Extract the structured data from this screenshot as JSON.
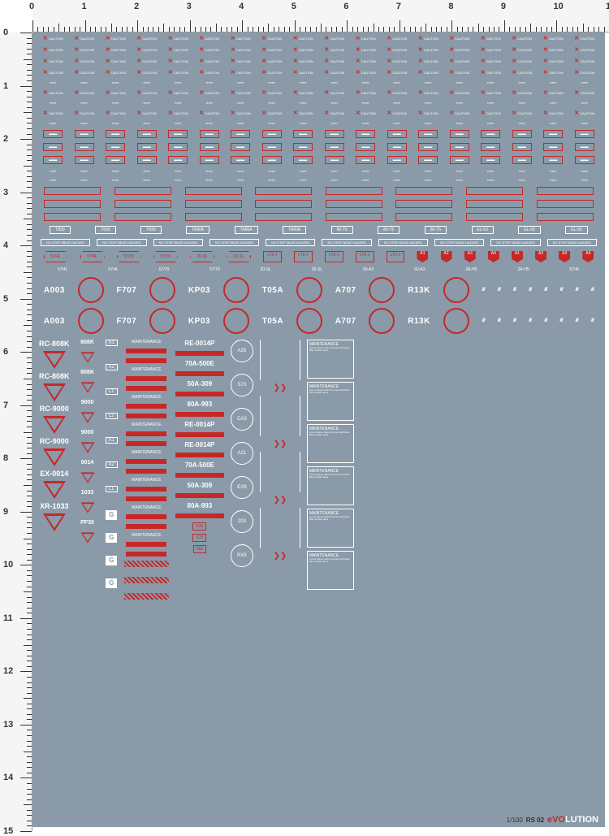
{
  "ruler": {
    "h_max": 11,
    "v_max": 15,
    "minor_per_major": 10
  },
  "sheet_bg": "#8a9aa8",
  "red": "#c62828",
  "white": "#ffffff",
  "top_rows": {
    "count": 14,
    "items_per_row": 18,
    "sample_text": "CAUTION"
  },
  "bracket_labels": [
    "T830",
    "T830",
    "T830",
    "TA90A",
    "TA90A",
    "TA90A",
    "80-T5",
    "80-T5",
    "80-T5",
    "EL-03",
    "EL-03",
    "EL-03"
  ],
  "hex_labels": [
    "57/4L",
    "57/4L",
    "57/70",
    "57/70",
    "20-SL",
    "20-SL",
    "50-A3",
    "50-A3",
    "2A-H5",
    "2A-H5",
    "57/4L"
  ],
  "rect_codes": [
    "LT9-1",
    "LT9-1",
    "LT9-1",
    "LT9-1",
    "LT9-1",
    "T71-1",
    "T71-1",
    "T71-1",
    "T71-1",
    "T71-1"
  ],
  "code_circles": {
    "row1": [
      "A003",
      "F707",
      "KP03",
      "T05A",
      "A707",
      "R13K"
    ],
    "row2": [
      "A003",
      "F707",
      "KP03",
      "T05A",
      "A707",
      "R13K"
    ]
  },
  "triangle_codes": [
    "RC-808K",
    "RC-808K",
    "RC-9000",
    "RC-9000",
    "EX-0014",
    "XR-1033"
  ],
  "small_codes": [
    "808K",
    "808K",
    "9000",
    "9000",
    "0014",
    "1033",
    "PF30"
  ],
  "mid_labels": [
    "A1",
    "A2",
    "L1",
    "L2",
    "A1",
    "A2",
    "L1"
  ],
  "re_codes": [
    "RE-0014P",
    "70A-500E",
    "50A-309",
    "80A-993",
    "RE-0014P",
    "RE-0014P",
    "70A-500E",
    "50A-309",
    "80A-993"
  ],
  "circle_labels": [
    "A35",
    "S73",
    "CA3",
    "A21",
    "EX9",
    "203",
    "RX5"
  ],
  "small_boxes": [
    "N25",
    "S75",
    "055"
  ],
  "maintenance_label": "MAINTENANCE",
  "caution_label": "CAUTION",
  "footer": {
    "scale": "1/100",
    "code": "RS 02",
    "brand_red": "eVO",
    "brand_white": "LUTION"
  },
  "shield_labels": [
    "A1",
    "A2",
    "A3",
    "A4",
    "A1",
    "A2",
    "A3",
    "A4"
  ]
}
